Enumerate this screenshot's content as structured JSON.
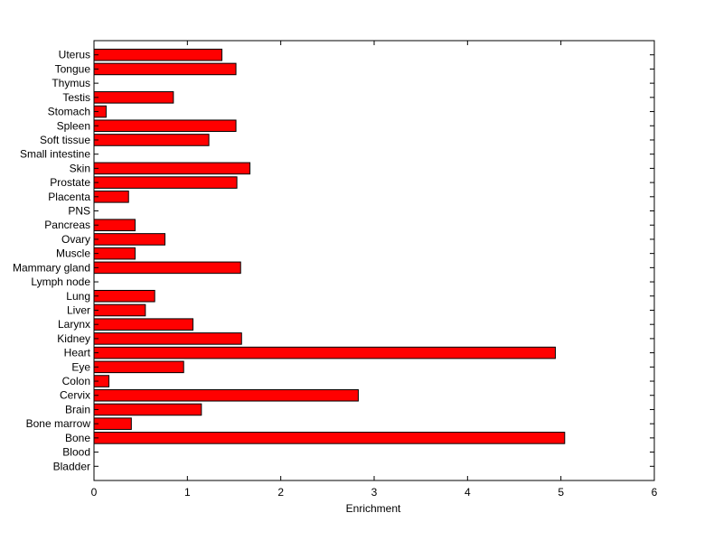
{
  "chart_data": {
    "type": "bar",
    "orientation": "horizontal",
    "categories": [
      "Bladder",
      "Blood",
      "Bone",
      "Bone marrow",
      "Brain",
      "Cervix",
      "Colon",
      "Eye",
      "Heart",
      "Kidney",
      "Larynx",
      "Liver",
      "Lung",
      "Lymph node",
      "Mammary gland",
      "Muscle",
      "Ovary",
      "Pancreas",
      "PNS",
      "Placenta",
      "Prostate",
      "Skin",
      "Small intestine",
      "Soft tissue",
      "Spleen",
      "Stomach",
      "Testis",
      "Thymus",
      "Tongue",
      "Uterus"
    ],
    "values": [
      0,
      0,
      5.04,
      0.4,
      1.15,
      2.83,
      0.16,
      0.96,
      4.94,
      1.58,
      1.06,
      0.55,
      0.65,
      0,
      1.57,
      0.44,
      0.76,
      0.44,
      0,
      0.37,
      1.53,
      1.67,
      0,
      1.23,
      1.52,
      0.13,
      0.85,
      0,
      1.52,
      1.37
    ],
    "xlabel": "Enrichment",
    "ylabel": "",
    "title": "",
    "xlim": [
      0,
      6
    ],
    "xticks": [
      "0",
      "1",
      "2",
      "3",
      "4",
      "5",
      "6"
    ],
    "grid": false,
    "bar_color": "#ff0000",
    "edge_color": "#000000"
  }
}
